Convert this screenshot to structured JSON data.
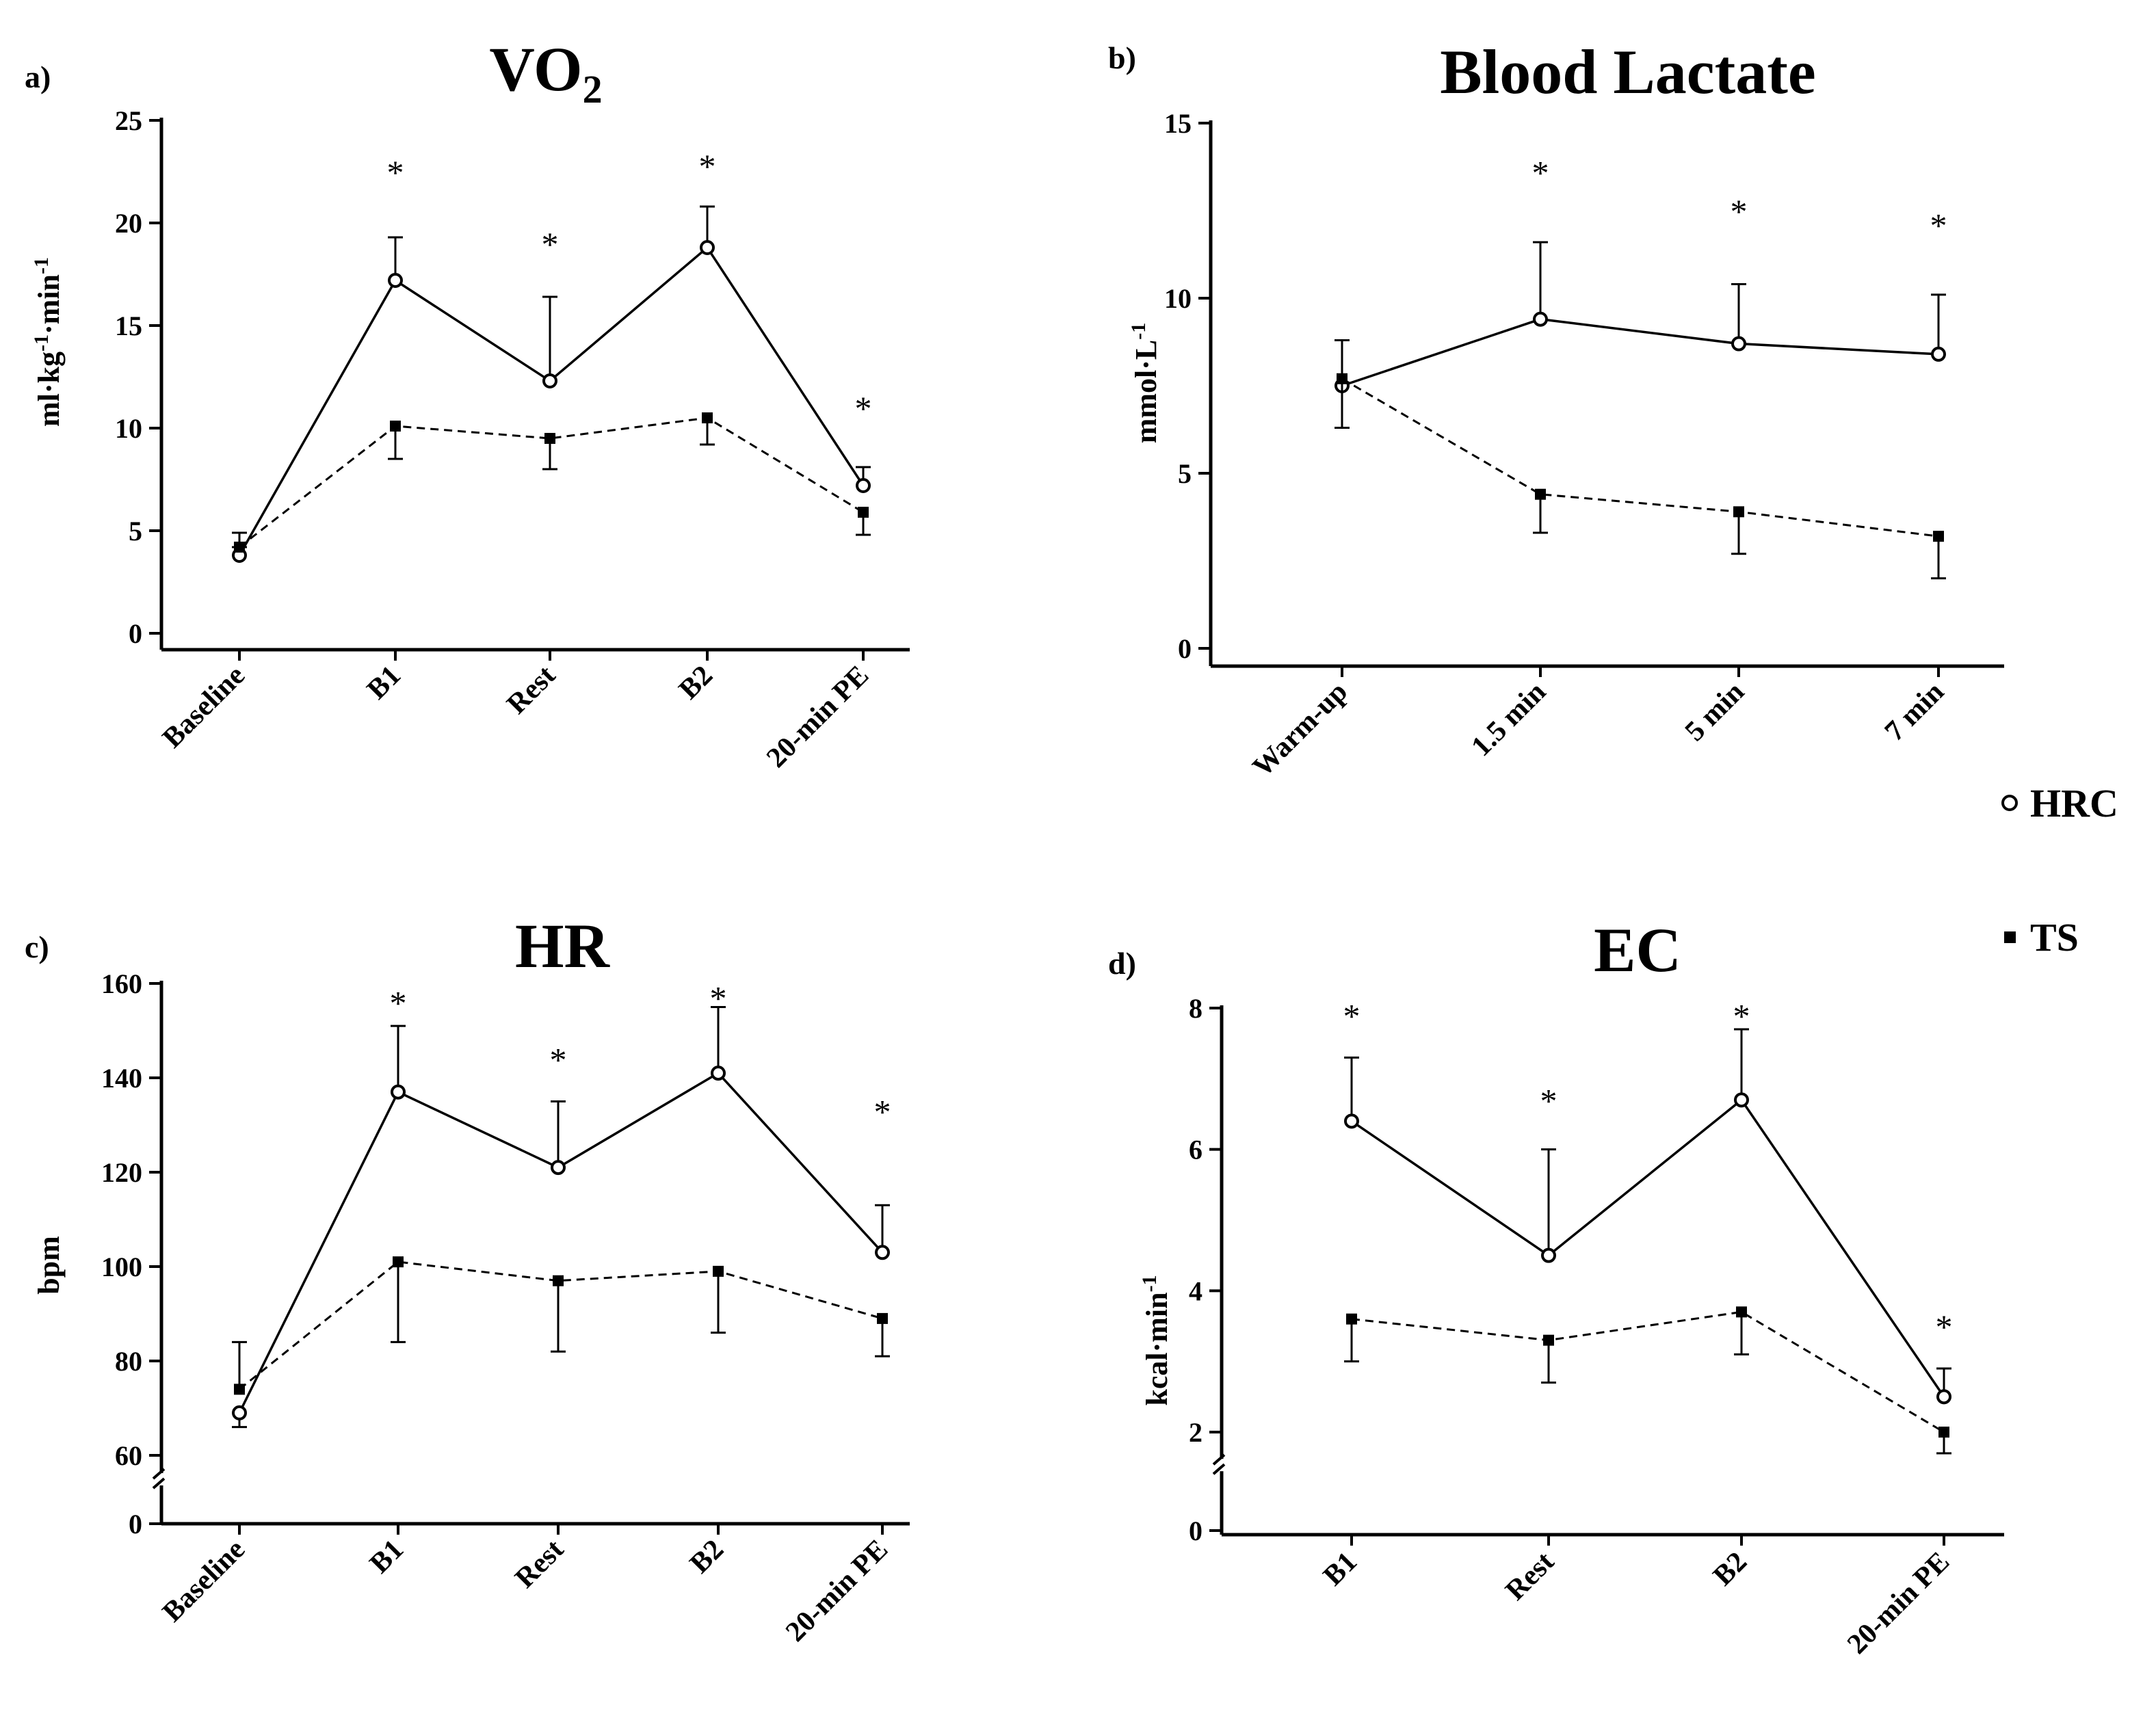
{
  "legend": [
    {
      "name": "HRC",
      "marker": "open-circle"
    },
    {
      "name": "TS",
      "marker": "filled-square"
    }
  ],
  "chart_data": [
    {
      "panel": "a)",
      "type": "line",
      "title": "VO",
      "title_sub": "2",
      "ylabel": "ml·kg-1·min-1",
      "ylim": [
        0,
        25
      ],
      "yticks": [
        0,
        5,
        10,
        15,
        20,
        25
      ],
      "axis_break": false,
      "categories": [
        "Baseline",
        "B1",
        "Rest",
        "B2",
        "20-min PE"
      ],
      "series": [
        {
          "name": "HRC",
          "values": [
            3.8,
            17.2,
            12.3,
            18.8,
            7.2
          ],
          "err_hi": [
            4.2,
            19.3,
            16.4,
            20.8,
            8.1
          ],
          "err_lo": [
            null,
            null,
            null,
            null,
            null
          ]
        },
        {
          "name": "TS",
          "values": [
            4.2,
            10.1,
            9.5,
            10.5,
            5.9
          ],
          "err_hi": [
            4.9,
            null,
            null,
            null,
            null
          ],
          "err_lo": [
            null,
            8.5,
            8.0,
            9.2,
            4.8
          ]
        }
      ],
      "significance": [
        "",
        "*",
        "*",
        "*",
        "*"
      ],
      "sig_y": [
        null,
        22.5,
        19.0,
        22.8,
        11.0
      ]
    },
    {
      "panel": "b)",
      "type": "line",
      "title": "Blood Lactate",
      "title_sub": "",
      "ylabel": "mmol·L-1",
      "ylim": [
        0,
        15
      ],
      "yticks": [
        0,
        5,
        10,
        15
      ],
      "axis_break": false,
      "categories": [
        "Warm-up",
        "1.5 min",
        "5 min",
        "7 min"
      ],
      "series": [
        {
          "name": "HRC",
          "values": [
            7.5,
            9.4,
            8.7,
            8.4
          ],
          "err_hi": [
            8.8,
            11.6,
            10.4,
            10.1
          ],
          "err_lo": [
            null,
            null,
            null,
            null
          ]
        },
        {
          "name": "TS",
          "values": [
            7.7,
            4.4,
            3.9,
            3.2
          ],
          "err_hi": [
            null,
            null,
            null,
            null
          ],
          "err_lo": [
            6.3,
            3.3,
            2.7,
            2.0
          ]
        }
      ],
      "significance": [
        "",
        "*",
        "*",
        "*"
      ],
      "sig_y": [
        null,
        13.6,
        12.5,
        12.1
      ]
    },
    {
      "panel": "c)",
      "type": "line",
      "title": "HR",
      "title_sub": "",
      "ylabel": "bpm",
      "ylim": [
        60,
        160
      ],
      "yticks": [
        60,
        80,
        100,
        120,
        140,
        160
      ],
      "axis_break": true,
      "break_zero_label": "0",
      "categories": [
        "Baseline",
        "B1",
        "Rest",
        "B2",
        "20-min PE"
      ],
      "series": [
        {
          "name": "HRC",
          "values": [
            69,
            137,
            121,
            141,
            103
          ],
          "err_hi": [
            null,
            151,
            135,
            155,
            113
          ],
          "err_lo": [
            66,
            null,
            null,
            null,
            null
          ]
        },
        {
          "name": "TS",
          "values": [
            74,
            101,
            97,
            99,
            89
          ],
          "err_hi": [
            84,
            null,
            null,
            null,
            null
          ],
          "err_lo": [
            null,
            84,
            82,
            86,
            81
          ]
        }
      ],
      "significance": [
        "",
        "*",
        "*",
        "*",
        "*"
      ],
      "sig_y": [
        null,
        156,
        144,
        157,
        133
      ]
    },
    {
      "panel": "d)",
      "type": "line",
      "title": "EC",
      "title_sub": "",
      "ylabel": "kcal·min-1",
      "ylim": [
        2,
        8
      ],
      "yticks": [
        2,
        4,
        6,
        8
      ],
      "axis_break": true,
      "break_zero_label": "0",
      "categories": [
        "B1",
        "Rest",
        "B2",
        "20-min PE"
      ],
      "series": [
        {
          "name": "HRC",
          "values": [
            6.4,
            4.5,
            6.7,
            2.5
          ],
          "err_hi": [
            7.3,
            6.0,
            7.7,
            2.9
          ],
          "err_lo": [
            null,
            null,
            null,
            null
          ]
        },
        {
          "name": "TS",
          "values": [
            3.6,
            3.3,
            3.7,
            2.0
          ],
          "err_hi": [
            null,
            null,
            null,
            null
          ],
          "err_lo": [
            3.0,
            2.7,
            3.1,
            1.7
          ]
        }
      ],
      "significance": [
        "*",
        "*",
        "*",
        "*"
      ],
      "sig_y": [
        7.9,
        6.7,
        7.9,
        3.5
      ]
    }
  ]
}
